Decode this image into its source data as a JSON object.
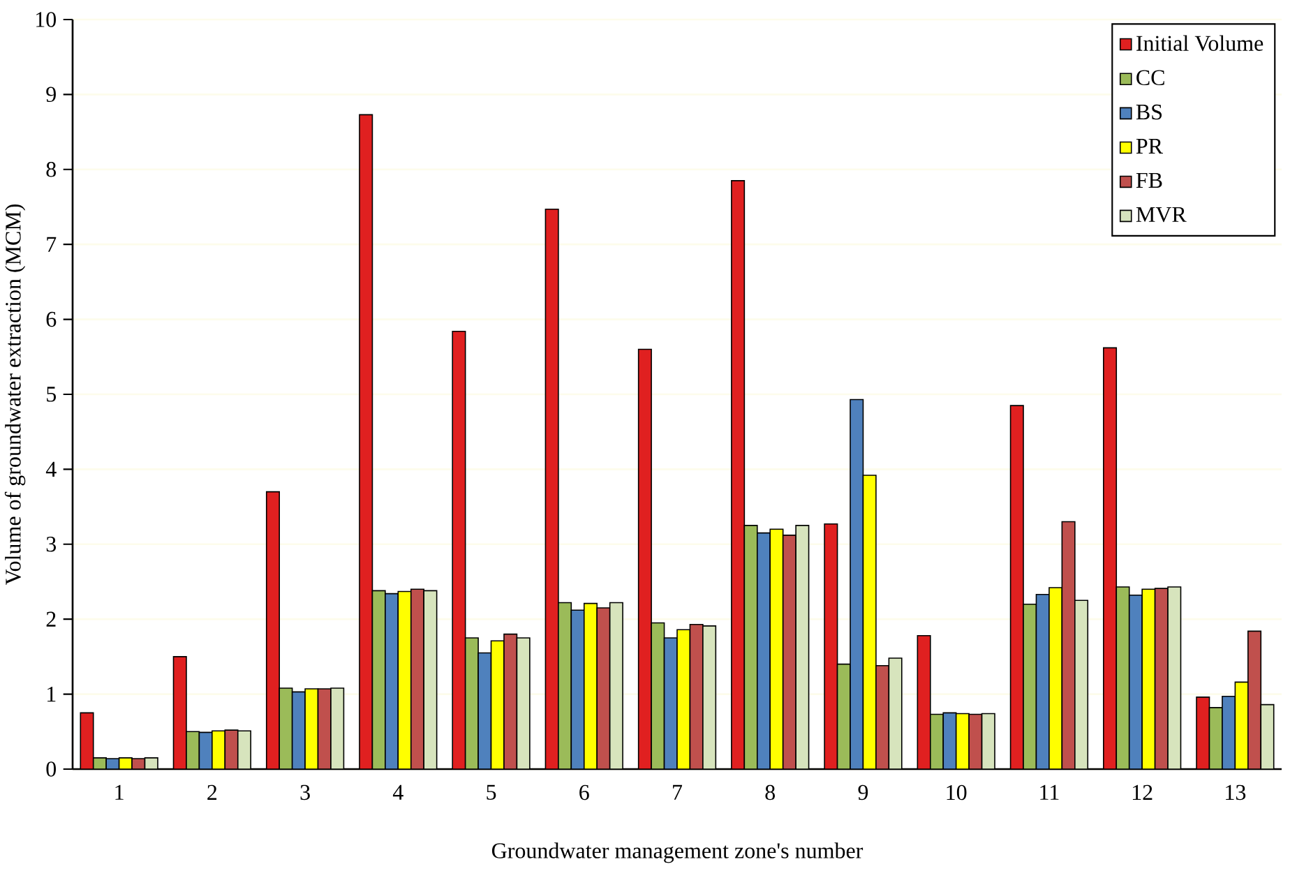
{
  "chart_data": {
    "type": "bar",
    "xlabel": "Groundwater management zone's number",
    "ylabel": "Volume of groundwater extraction (MCM)",
    "categories": [
      "1",
      "2",
      "3",
      "4",
      "5",
      "6",
      "7",
      "8",
      "9",
      "10",
      "11",
      "12",
      "13"
    ],
    "series": [
      {
        "name": "Initial Volume",
        "color": "#e02020",
        "values": [
          0.75,
          1.5,
          3.7,
          8.73,
          5.84,
          7.47,
          5.6,
          7.85,
          3.27,
          1.78,
          4.85,
          5.62,
          0.96
        ]
      },
      {
        "name": "CC",
        "color": "#9bbb59",
        "values": [
          0.15,
          0.5,
          1.08,
          2.38,
          1.75,
          2.22,
          1.95,
          3.25,
          1.4,
          0.73,
          2.2,
          2.43,
          0.82
        ]
      },
      {
        "name": "BS",
        "color": "#4f81bd",
        "values": [
          0.14,
          0.49,
          1.03,
          2.34,
          1.55,
          2.12,
          1.75,
          3.15,
          4.93,
          0.75,
          2.33,
          2.32,
          0.97
        ]
      },
      {
        "name": "PR",
        "color": "#ffff00",
        "values": [
          0.15,
          0.51,
          1.07,
          2.37,
          1.71,
          2.21,
          1.86,
          3.2,
          3.92,
          0.74,
          2.42,
          2.4,
          1.16
        ]
      },
      {
        "name": "FB",
        "color": "#c0504d",
        "values": [
          0.14,
          0.52,
          1.07,
          2.4,
          1.8,
          2.15,
          1.93,
          3.12,
          1.38,
          0.73,
          3.3,
          2.41,
          1.84
        ]
      },
      {
        "name": "MVR",
        "color": "#d7e4bd",
        "values": [
          0.15,
          0.51,
          1.08,
          2.38,
          1.75,
          2.22,
          1.91,
          3.25,
          1.48,
          0.74,
          2.25,
          2.43,
          0.86
        ]
      }
    ],
    "ylim": [
      0,
      10
    ],
    "yticks": [
      0,
      1,
      2,
      3,
      4,
      5,
      6,
      7,
      8,
      9,
      10
    ],
    "grid": "y",
    "legend": "top right"
  }
}
